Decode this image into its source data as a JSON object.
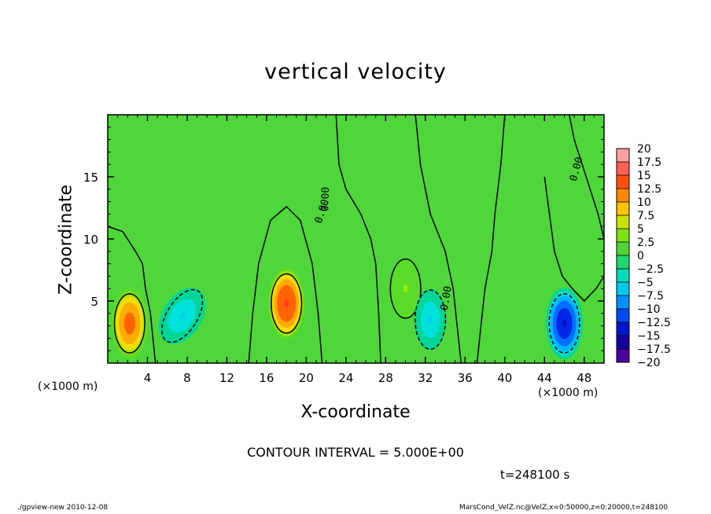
{
  "chart_data": {
    "type": "heatmap",
    "title": "vertical velocity",
    "xlabel": "X-coordinate",
    "ylabel": "Z-coordinate",
    "x_unit": "(×1000 m)",
    "y_unit": "(×1000 m)",
    "xlim": [
      0,
      50
    ],
    "ylim": [
      0,
      20
    ],
    "x_ticks": [
      4,
      8,
      12,
      16,
      20,
      24,
      28,
      32,
      36,
      40,
      44,
      48
    ],
    "y_ticks": [
      5,
      10,
      15
    ],
    "colorbar": {
      "min": -20,
      "max": 20,
      "labels": [
        "20",
        "17.5",
        "15",
        "12.5",
        "10",
        "7.5",
        "5",
        "2.5",
        "0",
        "−2.5",
        "−5",
        "−7.5",
        "−10",
        "−12.5",
        "−15",
        "−17.5",
        "−20"
      ]
    },
    "contour_label": "0.00",
    "contour_interval": "CONTOUR INTERVAL = 5.000E+00",
    "time": "t=248100 s",
    "features": [
      {
        "x": 2.2,
        "z": 3.2,
        "w": 13
      },
      {
        "x": 7.5,
        "z": 3.8,
        "w": -6
      },
      {
        "x": 18.0,
        "z": 4.8,
        "w": 15
      },
      {
        "x": 30.0,
        "z": 6.0,
        "w": 5
      },
      {
        "x": 32.5,
        "z": 3.5,
        "w": -6
      },
      {
        "x": 46.0,
        "z": 3.2,
        "w": -14
      }
    ]
  },
  "footer": {
    "left": "./gpview-new  2010-12-08",
    "right": "MarsCond_VelZ.nc@VelZ,x=0:50000,z=0:20000,t=248100"
  }
}
